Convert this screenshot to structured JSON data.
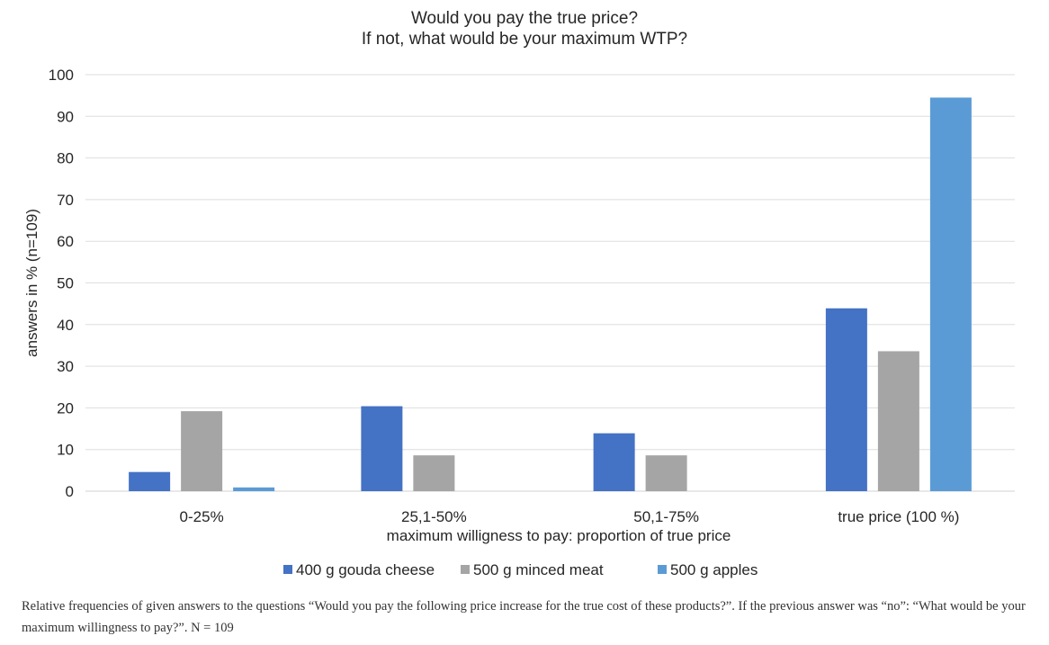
{
  "chart_data": {
    "type": "bar",
    "title": [
      "Would you pay the true price?",
      "If not, what would be your maximum WTP?"
    ],
    "xlabel": "maximum willigness to pay: proportion of true price",
    "ylabel": "answers in % (n=109)",
    "ylim": [
      0,
      100
    ],
    "yticks": [
      0,
      10,
      20,
      30,
      40,
      50,
      60,
      70,
      80,
      90,
      100
    ],
    "grid": true,
    "legend_position": "bottom",
    "categories": [
      "0-25%",
      "25,1-50%",
      "50,1-75%",
      "true price (100 %)"
    ],
    "series": [
      {
        "name": "400 g gouda cheese",
        "color": "#4472c4",
        "values": [
          4.6,
          20.4,
          13.9,
          43.9
        ]
      },
      {
        "name": "500 g minced meat",
        "color": "#a5a5a5",
        "values": [
          19.2,
          8.6,
          8.6,
          33.6
        ]
      },
      {
        "name": "500 g apples",
        "color": "#5b9bd5",
        "values": [
          0.9,
          0,
          0,
          94.5
        ]
      }
    ]
  },
  "caption": "Relative frequencies of given answers to the questions “Would you pay the following price increase for the true cost of these products?”. If the previous answer was “no”: “What would be your maximum willingness to pay?”. N = 109"
}
